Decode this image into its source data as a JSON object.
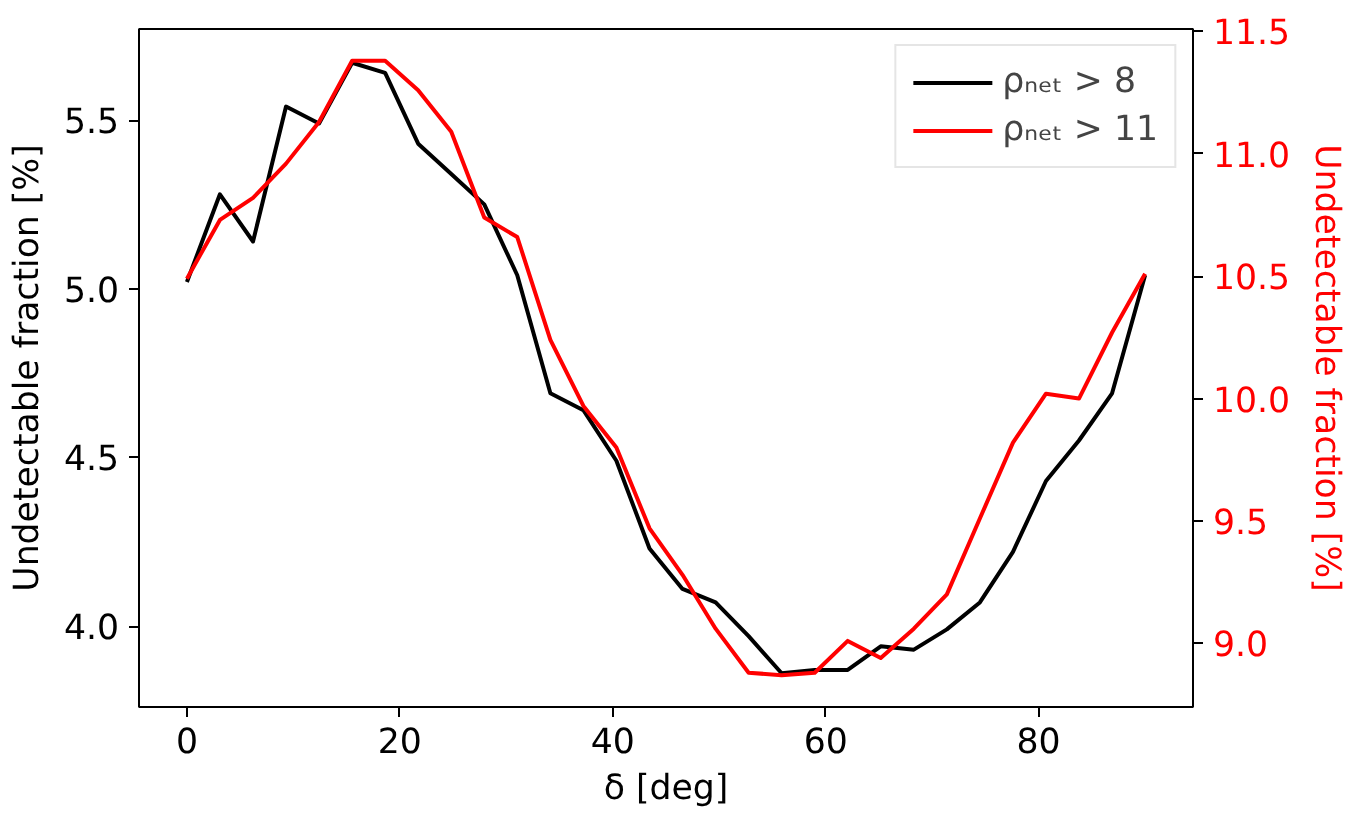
{
  "chart_data": {
    "type": "line",
    "xlabel": "δ [deg]",
    "ylabel": "Undetectable fraction [%]",
    "y2label": "Undetectable fraction [%]",
    "x": [
      0,
      3.1,
      6.21,
      9.31,
      12.41,
      15.52,
      18.62,
      21.72,
      24.83,
      27.93,
      31.03,
      34.14,
      37.24,
      40.34,
      43.45,
      46.55,
      49.66,
      52.76,
      55.86,
      58.97,
      62.07,
      65.17,
      68.28,
      71.38,
      74.48,
      77.59,
      80.69,
      83.79,
      86.9,
      90
    ],
    "series": [
      {
        "name": "ρₙₑₜ > 8",
        "color": "#000000",
        "values": [
          5.02,
          5.28,
          5.14,
          5.54,
          5.49,
          5.67,
          5.64,
          5.43,
          5.34,
          5.25,
          5.04,
          4.69,
          4.64,
          4.49,
          4.23,
          4.11,
          4.07,
          3.97,
          3.86,
          3.87,
          3.87,
          3.94,
          3.93,
          3.99,
          4.07,
          4.22,
          4.43,
          4.55,
          4.69,
          5.04
        ]
      },
      {
        "name": "ρₙₑₜ > 11",
        "color": "#ff0000",
        "axis": "y2",
        "values": [
          10.49,
          10.73,
          10.82,
          10.96,
          11.13,
          11.38,
          11.38,
          11.26,
          11.09,
          10.74,
          10.66,
          10.24,
          9.97,
          9.8,
          9.47,
          9.28,
          9.06,
          8.88,
          8.87,
          8.88,
          9.01,
          8.94,
          9.06,
          9.2,
          9.51,
          9.82,
          10.02,
          10.0,
          10.27,
          10.51
        ]
      }
    ],
    "xlim": [
      -4.5,
      94.5
    ],
    "xticks": [
      0,
      20,
      40,
      60,
      80
    ],
    "ylim": [
      3.76,
      5.77
    ],
    "yticks": [
      {
        "value": 4,
        "label": "4.0"
      },
      {
        "value": 4.5,
        "label": "4.5"
      },
      {
        "value": 5,
        "label": "5.0"
      },
      {
        "value": 5.5,
        "label": "5.5"
      }
    ],
    "y2lim": [
      8.74,
      11.51
    ],
    "y2ticks": [
      {
        "value": 9,
        "label": "9.0"
      },
      {
        "value": 9.5,
        "label": "9.5"
      },
      {
        "value": 10,
        "label": "10.0"
      },
      {
        "value": 10.5,
        "label": "10.5"
      },
      {
        "value": 11,
        "label": "11.0"
      },
      {
        "value": 11.5,
        "label": "11.5"
      }
    ],
    "legend": "top right",
    "grid": false
  }
}
